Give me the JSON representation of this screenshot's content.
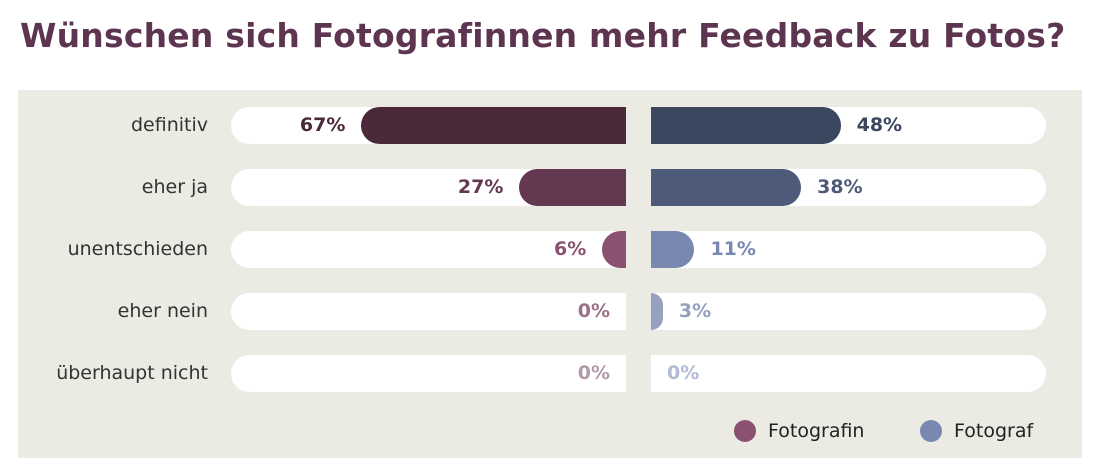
{
  "chart_data": {
    "type": "bar",
    "title": "Wünschen sich Fotografinnen mehr Feedback zu Fotos?",
    "categories": [
      "definitiv",
      "eher ja",
      "unentschieden",
      "eher nein",
      "überhaupt nicht"
    ],
    "xlim": [
      0,
      100
    ],
    "series": [
      {
        "name": "Fotografin",
        "values": [
          67,
          27,
          6,
          0,
          0
        ],
        "labels": [
          "67%",
          "27%",
          "6%",
          "0%",
          "0%"
        ],
        "colors": [
          "#4a2a3a",
          "#633850",
          "#8a5170",
          "#9a7288",
          "#b39aaa"
        ],
        "legend_color": "#8a5170"
      },
      {
        "name": "Fotograf",
        "values": [
          48,
          38,
          11,
          3,
          0
        ],
        "labels": [
          "48%",
          "38%",
          "11%",
          "3%",
          "0%"
        ],
        "colors": [
          "#3b465f",
          "#4d5a7a",
          "#7888b0",
          "#96a0bf",
          "#b2bad4"
        ],
        "legend_color": "#7888b0"
      }
    ],
    "legend": "bottom-right"
  }
}
